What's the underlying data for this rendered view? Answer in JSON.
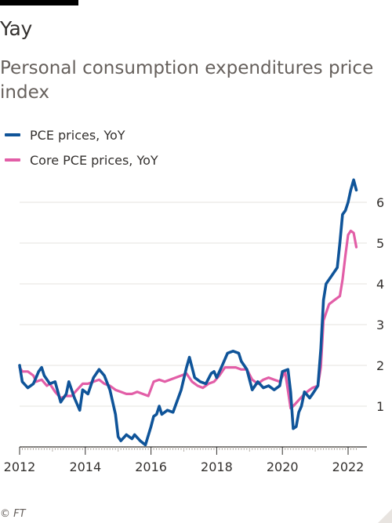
{
  "headline": "Yay",
  "colors": {
    "series_pce": "#0f5499",
    "series_core": "#e25ea7",
    "grid": "#e6e3df",
    "axis": "#33302e",
    "text_muted": "#66605c"
  },
  "source": "© FT",
  "chart_data": {
    "type": "line",
    "title": "Personal consumption expenditures price index",
    "x_tick_labels": [
      "2012",
      "2014",
      "2016",
      "2018",
      "2020",
      "2022"
    ],
    "x_ticks": [
      2012,
      2014,
      2016,
      2018,
      2020,
      2022
    ],
    "y_tick_labels": [
      "1",
      "2",
      "3",
      "4",
      "5",
      "6"
    ],
    "y_ticks": [
      1,
      2,
      3,
      4,
      5,
      6
    ],
    "xlim": [
      2012,
      2022.3
    ],
    "ylim": [
      0,
      6.5
    ],
    "grid": true,
    "y_axis_side": "right",
    "legend_position": "top-left",
    "series": [
      {
        "name": "PCE prices, YoY",
        "color": "#0f5499",
        "points": [
          [
            2012.0,
            2.0
          ],
          [
            2012.08,
            1.6
          ],
          [
            2012.25,
            1.45
          ],
          [
            2012.42,
            1.55
          ],
          [
            2012.5,
            1.7
          ],
          [
            2012.58,
            1.85
          ],
          [
            2012.67,
            1.95
          ],
          [
            2012.75,
            1.75
          ],
          [
            2012.92,
            1.55
          ],
          [
            2013.08,
            1.6
          ],
          [
            2013.25,
            1.1
          ],
          [
            2013.42,
            1.3
          ],
          [
            2013.5,
            1.6
          ],
          [
            2013.67,
            1.2
          ],
          [
            2013.83,
            0.9
          ],
          [
            2013.92,
            1.4
          ],
          [
            2014.08,
            1.3
          ],
          [
            2014.25,
            1.7
          ],
          [
            2014.42,
            1.9
          ],
          [
            2014.58,
            1.75
          ],
          [
            2014.75,
            1.4
          ],
          [
            2014.92,
            0.8
          ],
          [
            2015.0,
            0.25
          ],
          [
            2015.08,
            0.15
          ],
          [
            2015.25,
            0.3
          ],
          [
            2015.42,
            0.2
          ],
          [
            2015.5,
            0.3
          ],
          [
            2015.67,
            0.15
          ],
          [
            2015.83,
            0.05
          ],
          [
            2016.0,
            0.5
          ],
          [
            2016.08,
            0.75
          ],
          [
            2016.17,
            0.8
          ],
          [
            2016.25,
            1.0
          ],
          [
            2016.33,
            0.8
          ],
          [
            2016.5,
            0.9
          ],
          [
            2016.67,
            0.85
          ],
          [
            2016.92,
            1.4
          ],
          [
            2017.08,
            1.95
          ],
          [
            2017.17,
            2.2
          ],
          [
            2017.33,
            1.7
          ],
          [
            2017.5,
            1.6
          ],
          [
            2017.67,
            1.55
          ],
          [
            2017.83,
            1.8
          ],
          [
            2017.92,
            1.85
          ],
          [
            2018.0,
            1.7
          ],
          [
            2018.17,
            2.0
          ],
          [
            2018.33,
            2.3
          ],
          [
            2018.5,
            2.35
          ],
          [
            2018.67,
            2.3
          ],
          [
            2018.75,
            2.1
          ],
          [
            2018.92,
            1.9
          ],
          [
            2019.08,
            1.4
          ],
          [
            2019.25,
            1.6
          ],
          [
            2019.42,
            1.45
          ],
          [
            2019.58,
            1.5
          ],
          [
            2019.75,
            1.4
          ],
          [
            2019.92,
            1.5
          ],
          [
            2020.0,
            1.85
          ],
          [
            2020.17,
            1.9
          ],
          [
            2020.25,
            1.35
          ],
          [
            2020.33,
            0.45
          ],
          [
            2020.42,
            0.5
          ],
          [
            2020.5,
            0.85
          ],
          [
            2020.58,
            1.0
          ],
          [
            2020.67,
            1.35
          ],
          [
            2020.83,
            1.2
          ],
          [
            2020.92,
            1.3
          ],
          [
            2021.08,
            1.5
          ],
          [
            2021.17,
            2.4
          ],
          [
            2021.25,
            3.6
          ],
          [
            2021.33,
            4.0
          ],
          [
            2021.5,
            4.2
          ],
          [
            2021.67,
            4.4
          ],
          [
            2021.75,
            5.0
          ],
          [
            2021.83,
            5.7
          ],
          [
            2021.92,
            5.8
          ],
          [
            2022.0,
            6.0
          ],
          [
            2022.08,
            6.3
          ],
          [
            2022.17,
            6.55
          ],
          [
            2022.25,
            6.3
          ]
        ]
      },
      {
        "name": "Core PCE prices, YoY",
        "color": "#e25ea7",
        "points": [
          [
            2012.0,
            1.95
          ],
          [
            2012.08,
            1.85
          ],
          [
            2012.25,
            1.85
          ],
          [
            2012.42,
            1.75
          ],
          [
            2012.5,
            1.6
          ],
          [
            2012.67,
            1.65
          ],
          [
            2012.83,
            1.5
          ],
          [
            2012.92,
            1.55
          ],
          [
            2013.08,
            1.35
          ],
          [
            2013.25,
            1.2
          ],
          [
            2013.42,
            1.25
          ],
          [
            2013.58,
            1.25
          ],
          [
            2013.75,
            1.4
          ],
          [
            2013.92,
            1.55
          ],
          [
            2014.08,
            1.55
          ],
          [
            2014.25,
            1.6
          ],
          [
            2014.42,
            1.65
          ],
          [
            2014.58,
            1.55
          ],
          [
            2014.75,
            1.5
          ],
          [
            2014.92,
            1.4
          ],
          [
            2015.08,
            1.35
          ],
          [
            2015.25,
            1.3
          ],
          [
            2015.42,
            1.3
          ],
          [
            2015.58,
            1.35
          ],
          [
            2015.75,
            1.3
          ],
          [
            2015.92,
            1.25
          ],
          [
            2016.08,
            1.6
          ],
          [
            2016.25,
            1.65
          ],
          [
            2016.42,
            1.6
          ],
          [
            2016.58,
            1.65
          ],
          [
            2016.75,
            1.7
          ],
          [
            2016.92,
            1.75
          ],
          [
            2017.08,
            1.8
          ],
          [
            2017.25,
            1.6
          ],
          [
            2017.42,
            1.5
          ],
          [
            2017.58,
            1.45
          ],
          [
            2017.75,
            1.55
          ],
          [
            2017.92,
            1.6
          ],
          [
            2018.08,
            1.75
          ],
          [
            2018.25,
            1.95
          ],
          [
            2018.42,
            1.95
          ],
          [
            2018.58,
            1.95
          ],
          [
            2018.75,
            1.9
          ],
          [
            2018.92,
            1.9
          ],
          [
            2019.08,
            1.65
          ],
          [
            2019.25,
            1.55
          ],
          [
            2019.42,
            1.65
          ],
          [
            2019.58,
            1.7
          ],
          [
            2019.75,
            1.65
          ],
          [
            2019.92,
            1.6
          ],
          [
            2020.08,
            1.85
          ],
          [
            2020.25,
            0.95
          ],
          [
            2020.33,
            1.0
          ],
          [
            2020.5,
            1.15
          ],
          [
            2020.67,
            1.3
          ],
          [
            2020.83,
            1.4
          ],
          [
            2020.92,
            1.45
          ],
          [
            2021.08,
            1.5
          ],
          [
            2021.17,
            1.95
          ],
          [
            2021.25,
            3.1
          ],
          [
            2021.42,
            3.5
          ],
          [
            2021.58,
            3.6
          ],
          [
            2021.75,
            3.7
          ],
          [
            2021.83,
            4.1
          ],
          [
            2021.92,
            4.7
          ],
          [
            2022.0,
            5.2
          ],
          [
            2022.08,
            5.3
          ],
          [
            2022.17,
            5.25
          ],
          [
            2022.25,
            4.9
          ]
        ]
      }
    ]
  }
}
